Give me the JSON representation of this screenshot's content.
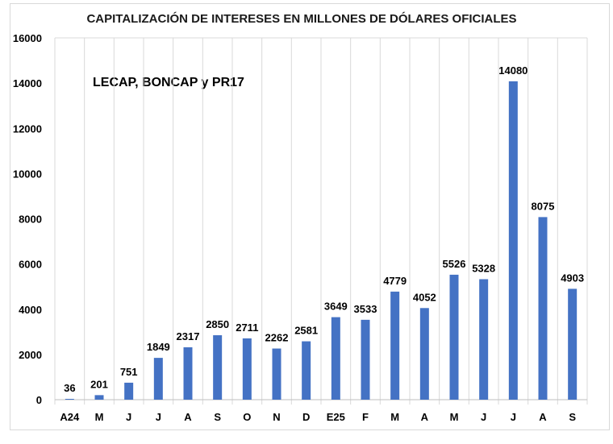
{
  "chart_data": {
    "type": "bar",
    "title": "CAPITALIZACIÓN DE INTERESES EN MILLONES DE DÓLARES OFICIALES",
    "annotation": "LECAP, BONCAP y PR17",
    "xlabel": "",
    "ylabel": "",
    "categories": [
      "A24",
      "M",
      "J",
      "J",
      "A",
      "S",
      "O",
      "N",
      "D",
      "E25",
      "F",
      "M",
      "A",
      "M",
      "J",
      "J",
      "A",
      "S"
    ],
    "values": [
      36,
      201,
      751,
      1849,
      2317,
      2850,
      2711,
      2262,
      2581,
      3649,
      3533,
      4779,
      4052,
      5526,
      5328,
      14080,
      8075,
      4903
    ],
    "ylim": [
      0,
      16000
    ],
    "yticks": [
      0,
      2000,
      4000,
      6000,
      8000,
      10000,
      12000,
      14000,
      16000
    ],
    "grid": "vertical-category-lines",
    "legend": "none",
    "bar_color": "#4472C4"
  }
}
